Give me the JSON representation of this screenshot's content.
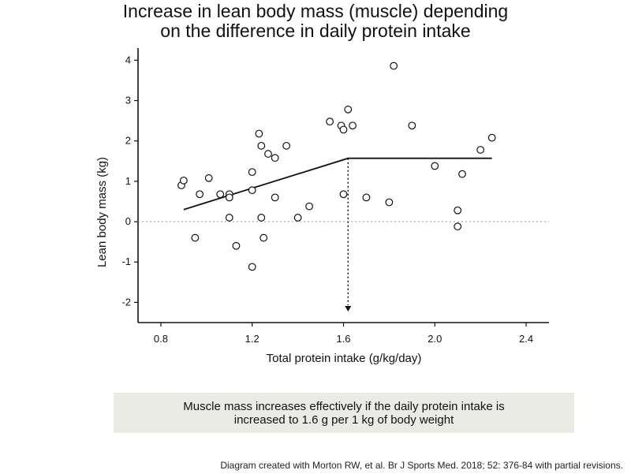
{
  "chart_data": {
    "type": "scatter",
    "title_lines": [
      "Increase in lean body mass (muscle) depending",
      "on the difference in daily protein intake"
    ],
    "xlabel": "Total protein intake (g/kg/day)",
    "ylabel": "Lean body mass (kg)",
    "xlim": [
      0.7,
      2.5
    ],
    "ylim": [
      -2.5,
      4.3
    ],
    "xticks": [
      0.8,
      1.2,
      1.6,
      2.0,
      2.4
    ],
    "xtick_labels": [
      "0.8",
      "1.2",
      "1.6",
      "2.0",
      "2.4"
    ],
    "yticks": [
      -2,
      -1,
      0,
      1,
      2,
      3,
      4
    ],
    "ytick_labels": [
      "-2",
      "-1",
      "0",
      "1",
      "2",
      "3",
      "4"
    ],
    "grid": false,
    "zero_reference_line": true,
    "points": [
      {
        "x": 0.89,
        "y": 0.9
      },
      {
        "x": 0.9,
        "y": 1.02
      },
      {
        "x": 0.95,
        "y": -0.4
      },
      {
        "x": 0.97,
        "y": 0.68
      },
      {
        "x": 1.01,
        "y": 1.08
      },
      {
        "x": 1.06,
        "y": 0.68
      },
      {
        "x": 1.1,
        "y": 0.68
      },
      {
        "x": 1.1,
        "y": 0.6
      },
      {
        "x": 1.1,
        "y": 0.1
      },
      {
        "x": 1.13,
        "y": -0.6
      },
      {
        "x": 1.2,
        "y": 1.23
      },
      {
        "x": 1.2,
        "y": 0.78
      },
      {
        "x": 1.2,
        "y": -1.12
      },
      {
        "x": 1.23,
        "y": 2.18
      },
      {
        "x": 1.24,
        "y": 1.88
      },
      {
        "x": 1.24,
        "y": 0.1
      },
      {
        "x": 1.25,
        "y": -0.4
      },
      {
        "x": 1.27,
        "y": 1.68
      },
      {
        "x": 1.3,
        "y": 1.58
      },
      {
        "x": 1.3,
        "y": 0.6
      },
      {
        "x": 1.35,
        "y": 1.88
      },
      {
        "x": 1.4,
        "y": 0.1
      },
      {
        "x": 1.45,
        "y": 0.38
      },
      {
        "x": 1.54,
        "y": 2.48
      },
      {
        "x": 1.59,
        "y": 2.38
      },
      {
        "x": 1.6,
        "y": 2.28
      },
      {
        "x": 1.6,
        "y": 0.68
      },
      {
        "x": 1.62,
        "y": 2.78
      },
      {
        "x": 1.64,
        "y": 2.38
      },
      {
        "x": 1.7,
        "y": 0.6
      },
      {
        "x": 1.8,
        "y": 0.48
      },
      {
        "x": 1.82,
        "y": 3.86
      },
      {
        "x": 1.9,
        "y": 2.38
      },
      {
        "x": 2.0,
        "y": 1.38
      },
      {
        "x": 2.1,
        "y": 0.28
      },
      {
        "x": 2.1,
        "y": -0.12
      },
      {
        "x": 2.12,
        "y": 1.18
      },
      {
        "x": 2.2,
        "y": 1.78
      },
      {
        "x": 2.25,
        "y": 2.08
      }
    ],
    "trend_line": [
      {
        "x": 0.9,
        "y": 0.3
      },
      {
        "x": 1.62,
        "y": 1.57
      },
      {
        "x": 2.25,
        "y": 1.57
      }
    ],
    "breakpoint": {
      "x": 1.62,
      "y": 1.57
    }
  },
  "caption": {
    "line1": "Muscle mass increases effectively if the daily protein intake is",
    "line2": "increased to 1.6 g per 1 kg of body weight"
  },
  "credit": "Diagram created with Morton RW, et al. Br J Sports Med. 2018; 52: 376-84 with partial revisions."
}
